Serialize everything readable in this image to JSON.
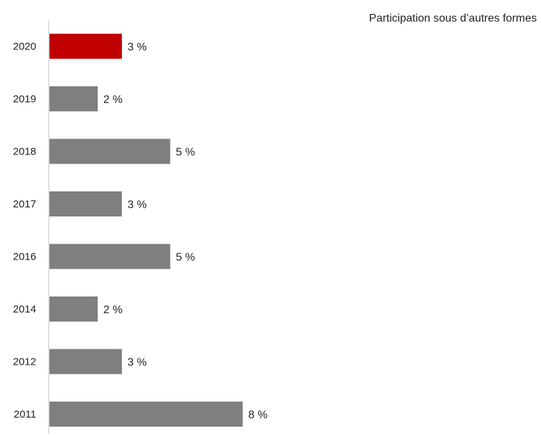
{
  "chart_data": {
    "type": "bar",
    "orientation": "horizontal",
    "title": "Participation sous d’autres formes",
    "categories": [
      "2020",
      "2019",
      "2018",
      "2017",
      "2016",
      "2014",
      "2012",
      "2011"
    ],
    "values": [
      3,
      2,
      5,
      3,
      5,
      2,
      3,
      8
    ],
    "value_labels": [
      "3 %",
      "2 %",
      "5 %",
      "3 %",
      "5 %",
      "2 %",
      "3 %",
      "8 %"
    ],
    "xlim": [
      0,
      8
    ],
    "grid": false,
    "legend": "none",
    "colors": {
      "highlight": "#c00000",
      "default": "#7f7f7f",
      "axis": "#bfbfbf"
    },
    "highlight_index": 0
  }
}
